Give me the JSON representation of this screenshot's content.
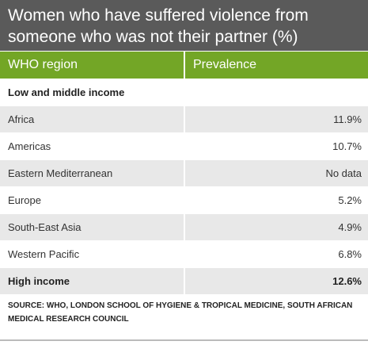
{
  "title": "Women who have suffered violence from someone who was not their partner (%)",
  "header": {
    "col1": "WHO region",
    "col2": "Prevalence"
  },
  "rows": [
    {
      "label": "Low and middle income",
      "value": "",
      "bold": true,
      "shade": false
    },
    {
      "label": "Africa",
      "value": "11.9%",
      "bold": false,
      "shade": true
    },
    {
      "label": "Americas",
      "value": "10.7%",
      "bold": false,
      "shade": false
    },
    {
      "label": "Eastern Mediterranean",
      "value": "No data",
      "bold": false,
      "shade": true
    },
    {
      "label": "Europe",
      "value": "5.2%",
      "bold": false,
      "shade": false
    },
    {
      "label": "South-East Asia",
      "value": "4.9%",
      "bold": false,
      "shade": true
    },
    {
      "label": "Western Pacific",
      "value": "6.8%",
      "bold": false,
      "shade": false
    },
    {
      "label": "High income",
      "value": "12.6%",
      "bold": true,
      "shade": true
    }
  ],
  "source": "SOURCE: WHO, LONDON SCHOOL OF HYGIENE & TROPICAL MEDICINE, SOUTH AFRICAN MEDICAL RESEARCH COUNCIL",
  "colors": {
    "title_bg": "#5a5a5a",
    "header_bg": "#73a626",
    "shade_bg": "#e8e8e8"
  },
  "chart_data": {
    "type": "table",
    "title": "Women who have suffered violence from someone who was not their partner (%)",
    "columns": [
      "WHO region",
      "Prevalence"
    ],
    "rows": [
      [
        "Low and middle income",
        ""
      ],
      [
        "Africa",
        "11.9%"
      ],
      [
        "Americas",
        "10.7%"
      ],
      [
        "Eastern Mediterranean",
        "No data"
      ],
      [
        "Europe",
        "5.2%"
      ],
      [
        "South-East Asia",
        "4.9%"
      ],
      [
        "Western Pacific",
        "6.8%"
      ],
      [
        "High income",
        "12.6%"
      ]
    ]
  }
}
